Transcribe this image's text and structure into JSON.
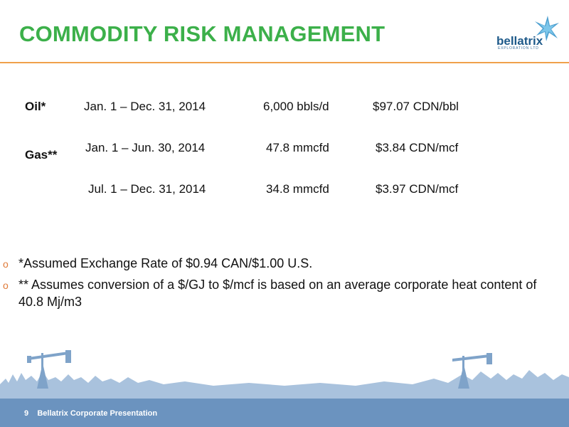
{
  "header": {
    "title": "COMMODITY RISK MANAGEMENT"
  },
  "logo": {
    "name": "bellatrix",
    "tagline": "EXPLORATION LTD",
    "icon": "star-icon",
    "color": "#1e5a8a"
  },
  "hedges": {
    "oil_label": "Oil*",
    "gas_label": "Gas**",
    "rows": [
      {
        "period": "Jan. 1 – Dec. 31, 2014",
        "volume": "6,000 bbls/d",
        "price": "$97.07 CDN/bbl"
      },
      {
        "period": "Jan. 1 – Jun. 30, 2014",
        "volume": "47.8 mmcfd",
        "price": "$3.84 CDN/mcf"
      },
      {
        "period": "Jul. 1 – Dec. 31, 2014",
        "volume": "34.8 mmcfd",
        "price": "$3.97 CDN/mcf"
      }
    ]
  },
  "notes": [
    {
      "marker": "o",
      "text": "*Assumed Exchange Rate of $0.94 CAN/$1.00 U.S."
    },
    {
      "marker": "o",
      "text": "** Assumes conversion of a $/GJ to $/mcf is based on an average corporate heat content of 40.8 Mj/m3"
    }
  ],
  "footer": {
    "page": "9",
    "label": "Bellatrix Corporate Presentation"
  },
  "colors": {
    "title": "#3cb04a",
    "rule": "#f0a14b",
    "footer": "#6b93bf",
    "bullet": "#e07b39"
  }
}
